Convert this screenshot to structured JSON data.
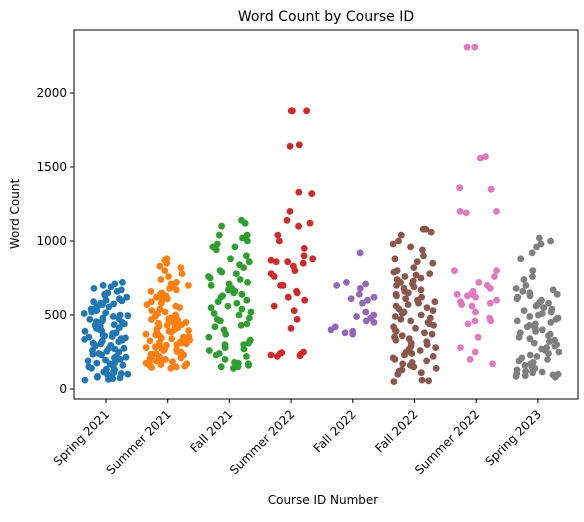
{
  "chart_data": {
    "type": "scatter",
    "subtype": "strip",
    "title": "Word Count by Course ID",
    "xlabel": "Course ID Number",
    "ylabel": "Word Count",
    "ylim": [
      -80,
      2430
    ],
    "yticks": [
      0,
      500,
      1000,
      1500,
      2000
    ],
    "grid": false,
    "legend": "none",
    "categories": [
      "Spring 2021",
      "Summer 2021",
      "Fall 2021",
      "Summer 2022",
      "Fall 2022",
      "Fall 2022",
      "Summer 2022",
      "Spring 2023"
    ],
    "series": [
      {
        "color": "#1f77b4",
        "values": [
          70,
          80,
          90,
          100,
          110,
          120,
          140,
          160,
          180,
          200,
          220,
          240,
          250,
          260,
          280,
          300,
          310,
          320,
          330,
          340,
          350,
          360,
          380,
          400,
          410,
          420,
          440,
          450,
          460,
          480,
          500,
          520,
          540,
          560,
          580,
          600,
          620,
          640,
          660,
          680,
          700,
          720,
          75,
          85,
          95,
          105,
          130,
          150,
          170,
          190,
          210,
          230,
          270,
          290,
          305,
          315,
          325,
          345,
          365,
          390,
          430,
          470,
          490,
          510,
          530,
          550,
          570,
          590,
          610,
          630,
          650,
          670,
          690,
          710,
          60,
          65,
          115,
          135,
          155,
          175,
          195,
          215,
          235,
          255,
          275,
          295,
          335,
          355,
          375,
          395,
          415,
          435,
          455,
          475,
          495,
          515,
          535,
          555,
          575,
          595
        ]
      },
      {
        "color": "#ff7f0e",
        "values": [
          140,
          150,
          160,
          170,
          180,
          190,
          200,
          210,
          220,
          230,
          240,
          250,
          260,
          270,
          280,
          290,
          300,
          310,
          320,
          330,
          340,
          350,
          360,
          370,
          380,
          390,
          400,
          410,
          420,
          430,
          440,
          450,
          460,
          470,
          480,
          490,
          500,
          520,
          540,
          560,
          580,
          600,
          620,
          640,
          660,
          680,
          700,
          720,
          760,
          780,
          820,
          830,
          850,
          880,
          145,
          155,
          165,
          175,
          185,
          195,
          205,
          215,
          225,
          235,
          245,
          255,
          265,
          275,
          285,
          295,
          305,
          315,
          325,
          335,
          345,
          355,
          365,
          375,
          385,
          395,
          405,
          415,
          425,
          435,
          445,
          455,
          465,
          475,
          485,
          495,
          510,
          530,
          550,
          570,
          590,
          610,
          630,
          650,
          670,
          690,
          710,
          740,
          800,
          870
        ]
      },
      {
        "color": "#2ca02c",
        "values": [
          140,
          150,
          160,
          170,
          180,
          200,
          220,
          240,
          260,
          280,
          300,
          310,
          330,
          350,
          370,
          400,
          420,
          440,
          460,
          480,
          500,
          520,
          540,
          560,
          580,
          600,
          620,
          640,
          650,
          660,
          680,
          700,
          720,
          740,
          760,
          780,
          800,
          820,
          840,
          860,
          880,
          900,
          940,
          960,
          980,
          1000,
          1020,
          1040,
          1100,
          1120,
          1140,
          150,
          175,
          230,
          270,
          300,
          430,
          470,
          510,
          550,
          590,
          630,
          670,
          710,
          750,
          790,
          960,
          1040
        ]
      },
      {
        "color": "#d62728",
        "values": [
          220,
          230,
          240,
          250,
          410,
          470,
          530,
          560,
          600,
          620,
          650,
          660,
          700,
          760,
          800,
          830,
          850,
          860,
          870,
          880,
          900,
          950,
          1000,
          1040,
          1100,
          1120,
          1140,
          1200,
          1320,
          1330,
          1640,
          1650,
          1880,
          1880,
          225,
          235,
          245,
          700,
          780,
          860,
          1880
        ]
      },
      {
        "color": "#9467bd",
        "values": [
          370,
          380,
          400,
          420,
          450,
          460,
          490,
          500,
          520,
          580,
          600,
          620,
          640,
          680,
          700,
          710,
          720,
          920,
          390,
          480,
          610
        ]
      },
      {
        "color": "#8c564b",
        "values": [
          50,
          60,
          100,
          120,
          140,
          160,
          180,
          200,
          220,
          240,
          260,
          280,
          300,
          320,
          340,
          360,
          380,
          400,
          420,
          440,
          460,
          480,
          500,
          520,
          540,
          560,
          580,
          600,
          620,
          640,
          660,
          680,
          700,
          720,
          740,
          760,
          780,
          800,
          820,
          850,
          880,
          900,
          940,
          960,
          980,
          1000,
          1040,
          1080,
          55,
          110,
          130,
          150,
          170,
          190,
          210,
          230,
          250,
          270,
          290,
          310,
          330,
          350,
          370,
          390,
          410,
          430,
          450,
          470,
          490,
          510,
          530,
          550,
          570,
          590,
          610,
          630,
          650,
          670,
          690,
          710,
          730,
          750,
          770,
          790,
          860,
          1060,
          1080
        ]
      },
      {
        "color": "#e377c2",
        "values": [
          170,
          200,
          250,
          280,
          350,
          440,
          460,
          480,
          520,
          560,
          580,
          600,
          620,
          640,
          660,
          680,
          720,
          760,
          800,
          1200,
          1360,
          1560,
          1570,
          2310,
          2310,
          1200,
          1350,
          1190,
          640,
          590,
          460,
          570,
          800,
          700,
          630
        ]
      },
      {
        "color": "#7f7f7f",
        "values": [
          80,
          90,
          100,
          110,
          120,
          140,
          160,
          180,
          200,
          220,
          240,
          260,
          280,
          300,
          320,
          340,
          360,
          380,
          400,
          420,
          440,
          460,
          480,
          500,
          520,
          540,
          560,
          580,
          600,
          620,
          640,
          660,
          680,
          760,
          800,
          880,
          920,
          960,
          980,
          1000,
          1020,
          85,
          95,
          105,
          115,
          130,
          150,
          170,
          190,
          210,
          230,
          250,
          270,
          290,
          310,
          330,
          350,
          370,
          390,
          410,
          430,
          450,
          470,
          490,
          510,
          530,
          550,
          570,
          590,
          610,
          630,
          650,
          670,
          700,
          740
        ]
      }
    ]
  }
}
